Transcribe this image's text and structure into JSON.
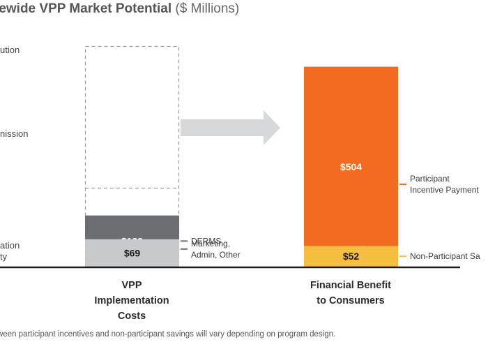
{
  "title": "tewide VPP Market Potential",
  "title_unit": "($ Millions)",
  "left_labels": [
    "ution",
    "nission",
    "ation",
    "ty"
  ],
  "footnote": "ween participant incentives and non-participant savings will vary depending on program design.",
  "colors": {
    "derms": "#6d6e71",
    "marketing": "#c8c9cb",
    "participant": "#f26b21",
    "nonparticipant": "#f6be41",
    "arrow": "#d6d8da",
    "axis": "#1a1a1a"
  },
  "chart_data": {
    "type": "bar",
    "stacked": true,
    "categories": [
      "VPP Implementation Costs",
      "Financial Benefit to Consumers"
    ],
    "category_label_lines": [
      [
        "VPP",
        "Implementation",
        "Costs"
      ],
      [
        "Financial Benefit",
        "to Consumers"
      ]
    ],
    "ylim": [
      0,
      556
    ],
    "grid": false,
    "legend": "segment labels beside bars",
    "bars": [
      {
        "category": "VPP Implementation Costs",
        "outline_total": 556,
        "segments": [
          {
            "name": "DERMS",
            "label_lines": [
              "DERMS"
            ],
            "value": 129,
            "value_label": "$129",
            "color": "derms"
          },
          {
            "name": "Marketing, Admin, Other",
            "label_lines": [
              "Marketing,",
              "Admin, Other"
            ],
            "value": 69,
            "value_label": "$69",
            "color": "marketing"
          }
        ]
      },
      {
        "category": "Financial Benefit to Consumers",
        "segments": [
          {
            "name": "Participant Incentive Payments",
            "label_lines": [
              "Participant",
              "Incentive Payment"
            ],
            "value": 504,
            "value_label": "$504",
            "color": "participant"
          },
          {
            "name": "Non-Participant Savings",
            "label_lines": [
              "Non-Participant Sa"
            ],
            "value": 52,
            "value_label": "$52",
            "color": "nonparticipant"
          }
        ]
      }
    ]
  }
}
